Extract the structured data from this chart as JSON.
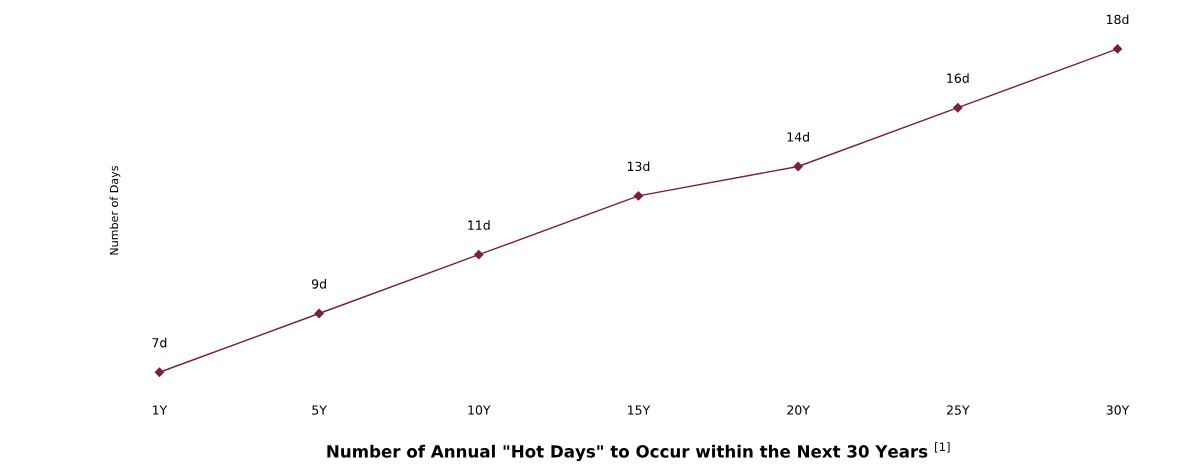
{
  "chart_data": {
    "type": "line",
    "xlabel": "Number of Annual \"Hot Days\" to Occur within the Next 30 Years $^{[1]}$",
    "ylabel": "Number of Days",
    "categories": [
      "1Y",
      "5Y",
      "10Y",
      "15Y",
      "20Y",
      "25Y",
      "30Y"
    ],
    "series": [
      {
        "color": "#7a1f3d",
        "values": [
          7,
          9,
          11,
          13,
          14,
          16,
          18
        ],
        "value_labels": [
          "7d",
          "9d",
          "11d",
          "13d",
          "14d",
          "16d",
          "18d"
        ]
      }
    ],
    "marker": "diamond",
    "line_style": "solid",
    "grid": false,
    "legend": false
  }
}
